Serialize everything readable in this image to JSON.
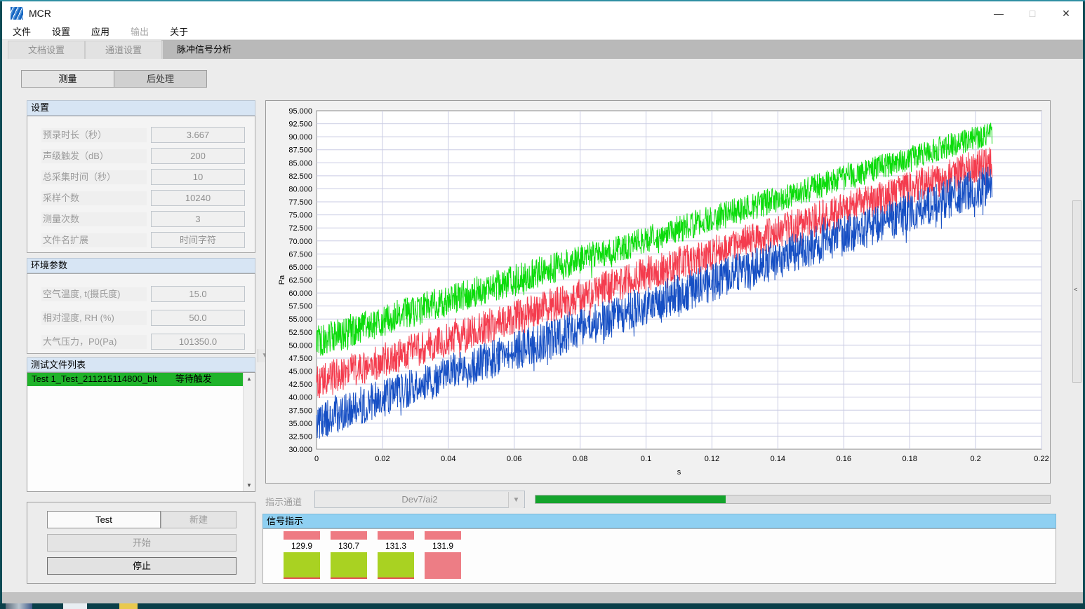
{
  "window": {
    "title": "MCR",
    "minimize": "—",
    "maximize": "□",
    "close": "✕"
  },
  "menu": {
    "items": [
      {
        "label": "文件",
        "enabled": true
      },
      {
        "label": "设置",
        "enabled": true
      },
      {
        "label": "应用",
        "enabled": true
      },
      {
        "label": "输出",
        "enabled": false
      },
      {
        "label": "关于",
        "enabled": true
      }
    ]
  },
  "tabs": {
    "items": [
      {
        "label": "文档设置",
        "active": false
      },
      {
        "label": "通道设置",
        "active": false
      },
      {
        "label": "脉冲信号分析",
        "active": true
      }
    ]
  },
  "subtabs": {
    "measure": "测量",
    "post": "后处理"
  },
  "settings_panel": {
    "title": "设置",
    "fields": [
      {
        "label": "预录时长（秒）",
        "value": "3.667",
        "type": "input"
      },
      {
        "label": "声级触发（dB）",
        "value": "200",
        "type": "input"
      },
      {
        "label": "总采集时间（秒）",
        "value": "10",
        "type": "input"
      },
      {
        "label": "采样个数",
        "value": "10240",
        "type": "input"
      },
      {
        "label": "测量次数",
        "value": "3",
        "type": "input"
      },
      {
        "label": "文件名扩展",
        "value": "时间字符",
        "type": "select"
      }
    ]
  },
  "env_panel": {
    "title": "环境参数",
    "fields": [
      {
        "label": "空气温度, t(摄氏度)",
        "value": "15.0",
        "type": "input"
      },
      {
        "label": "相对湿度, RH (%)",
        "value": "50.0",
        "type": "input"
      },
      {
        "label": "大气压力，P0(Pa)",
        "value": "101350.0",
        "type": "input"
      }
    ]
  },
  "file_list_panel": {
    "title": "测试文件列表",
    "rows": [
      {
        "name": "Test 1_Test_211215114800_blt",
        "status": "等待触发",
        "highlight": "#1fb32a"
      }
    ]
  },
  "controls_panel": {
    "test_value": "Test",
    "new_label": "新建",
    "start_label": "开始",
    "stop_label": "停止"
  },
  "indicator_channel": {
    "label": "指示通道",
    "value": "Dev7/ai2"
  },
  "progress": {
    "percent": 37,
    "color": "#14a42c"
  },
  "signal_panel": {
    "title": "信号指示",
    "bar_color": "#ee7b83",
    "items": [
      {
        "value": "129.9",
        "square_color": "#a9d222",
        "redline": true
      },
      {
        "value": "130.7",
        "square_color": "#a9d222",
        "redline": true
      },
      {
        "value": "131.3",
        "square_color": "#a9d222",
        "redline": true
      },
      {
        "value": "131.9",
        "square_color": "#ed7d85",
        "redline": false
      }
    ]
  },
  "chart_data": {
    "type": "line",
    "title": "",
    "xlabel": "s",
    "ylabel": "Pa",
    "xlim": [
      0,
      0.22
    ],
    "ylim": [
      30,
      95
    ],
    "x_tick_step": 0.02,
    "y_tick_step": 2.5,
    "grid": true,
    "legend": "none",
    "description": "Three noisy sound-pressure bands rising approximately linearly with time; data ends near x=0.205 s",
    "series": [
      {
        "name": "green-band",
        "color": "#0bdc0b",
        "x_start": 0,
        "x_end": 0.205,
        "start_center": 50.8,
        "end_center": 90.8,
        "start_halfwidth": 3.2,
        "end_halfwidth": 2.3,
        "spike": 1.6
      },
      {
        "name": "red-band",
        "color": "#f43c4e",
        "x_start": 0,
        "x_end": 0.205,
        "start_center": 42.9,
        "end_center": 85.2,
        "start_halfwidth": 3.3,
        "end_halfwidth": 3.4,
        "spike": 1.8
      },
      {
        "name": "blue-band",
        "color": "#164fc4",
        "x_start": 0,
        "x_end": 0.205,
        "start_center": 35.3,
        "end_center": 81.0,
        "start_halfwidth": 3.7,
        "end_halfwidth": 4.0,
        "spike": 2.6
      }
    ]
  },
  "splitter_glyph": "<"
}
